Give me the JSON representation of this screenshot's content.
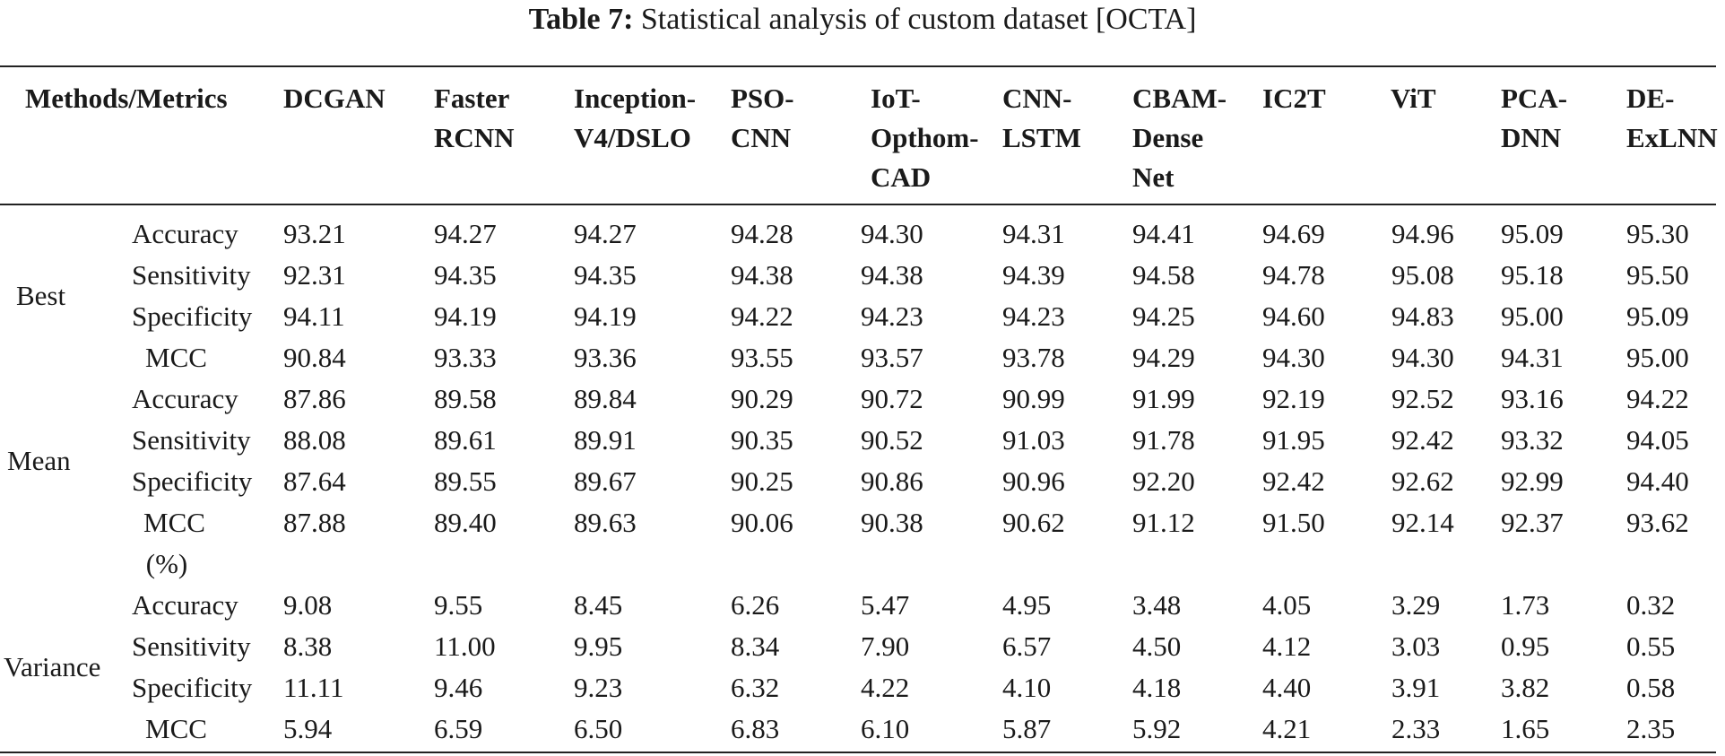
{
  "caption": {
    "label": "Table 7:",
    "text": "Statistical analysis of custom dataset [OCTA]"
  },
  "table": {
    "corner_header": "Methods/Metrics",
    "columns": [
      "DCGAN",
      "Faster\nRCNN",
      "Inception-\nV4/DSLO",
      "PSO-\nCNN",
      "IoT-\nOpthom-\nCAD",
      "CNN-\nLSTM",
      "CBAM-\nDense\nNet",
      "IC2T",
      "ViT",
      "PCA-\nDNN",
      "DE-\nExLNN"
    ],
    "groups": [
      {
        "name": "Best",
        "rows": [
          {
            "metric": "Accuracy",
            "values": [
              "93.21",
              "94.27",
              "94.27",
              "94.28",
              "94.30",
              "94.31",
              "94.41",
              "94.69",
              "94.96",
              "95.09",
              "95.30"
            ]
          },
          {
            "metric": "Sensitivity",
            "values": [
              "92.31",
              "94.35",
              "94.35",
              "94.38",
              "94.38",
              "94.39",
              "94.58",
              "94.78",
              "95.08",
              "95.18",
              "95.50"
            ]
          },
          {
            "metric": "Specificity",
            "values": [
              "94.11",
              "94.19",
              "94.19",
              "94.22",
              "94.23",
              "94.23",
              "94.25",
              "94.60",
              "94.83",
              "95.00",
              "95.09"
            ]
          },
          {
            "metric": "MCC",
            "values": [
              "90.84",
              "93.33",
              "93.36",
              "93.55",
              "93.57",
              "93.78",
              "94.29",
              "94.30",
              "94.30",
              "94.31",
              "95.00"
            ]
          }
        ]
      },
      {
        "name": "Mean",
        "rows": [
          {
            "metric": "Accuracy",
            "values": [
              "87.86",
              "89.58",
              "89.84",
              "90.29",
              "90.72",
              "90.99",
              "91.99",
              "92.19",
              "92.52",
              "93.16",
              "94.22"
            ]
          },
          {
            "metric": "Sensitivity",
            "values": [
              "88.08",
              "89.61",
              "89.91",
              "90.35",
              "90.52",
              "91.03",
              "91.78",
              "91.95",
              "92.42",
              "93.32",
              "94.05"
            ]
          },
          {
            "metric": "Specificity",
            "values": [
              "87.64",
              "89.55",
              "89.67",
              "90.25",
              "90.86",
              "90.96",
              "92.20",
              "92.42",
              "92.62",
              "92.99",
              "94.40"
            ]
          },
          {
            "metric": "MCC\n(%)",
            "values": [
              "87.88",
              "89.40",
              "89.63",
              "90.06",
              "90.38",
              "90.62",
              "91.12",
              "91.50",
              "92.14",
              "92.37",
              "93.62"
            ]
          }
        ]
      },
      {
        "name": "Variance",
        "rows": [
          {
            "metric": "Accuracy",
            "values": [
              "9.08",
              "9.55",
              "8.45",
              "6.26",
              "5.47",
              "4.95",
              "3.48",
              "4.05",
              "3.29",
              "1.73",
              "0.32"
            ]
          },
          {
            "metric": "Sensitivity",
            "values": [
              "8.38",
              "11.00",
              "9.95",
              "8.34",
              "7.90",
              "6.57",
              "4.50",
              "4.12",
              "3.03",
              "0.95",
              "0.55"
            ]
          },
          {
            "metric": "Specificity",
            "values": [
              "11.11",
              "9.46",
              "9.23",
              "6.32",
              "4.22",
              "4.10",
              "4.18",
              "4.40",
              "3.91",
              "3.82",
              "0.58"
            ]
          },
          {
            "metric": "MCC",
            "values": [
              "5.94",
              "6.59",
              "6.50",
              "6.83",
              "6.10",
              "5.87",
              "5.92",
              "4.21",
              "2.33",
              "1.65",
              "2.35"
            ]
          }
        ]
      }
    ]
  }
}
